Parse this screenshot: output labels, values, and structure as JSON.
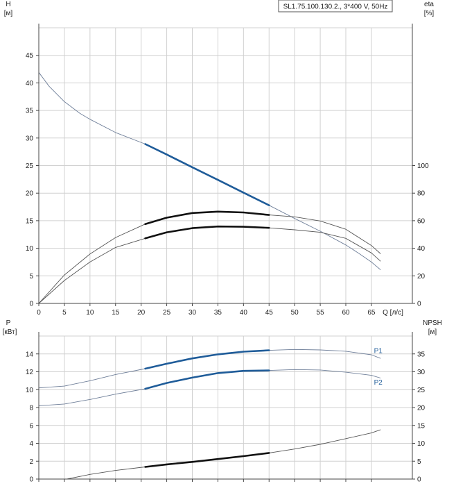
{
  "colors": {
    "grid": "#d0d0d0",
    "axis": "#444444",
    "blue": "#1f5c99",
    "thin": "#6f7f99",
    "black": "#111111"
  },
  "header": {
    "title": "SL1.75.100.130.2., 3*400 V, 50Hz"
  },
  "chart_data": [
    {
      "type": "line",
      "xlabel": "Q [л/с]",
      "ylabel_left": [
        "H",
        "[м]"
      ],
      "ylabel_right": [
        "eta",
        "[%]"
      ],
      "xlim": [
        0,
        73
      ],
      "ylim_left": [
        0,
        50
      ],
      "ylim_right": [
        0,
        200
      ],
      "x_ticks": [
        0,
        5,
        10,
        15,
        20,
        25,
        30,
        35,
        40,
        45,
        50,
        55,
        60,
        65
      ],
      "x_tick_labels": [
        "0",
        "5",
        "10",
        "15",
        "20",
        "25",
        "30",
        "35",
        "40",
        "45",
        "50",
        "55",
        "60",
        "65"
      ],
      "y_ticks_left": [
        0,
        5,
        10,
        15,
        20,
        25,
        30,
        35,
        40,
        45
      ],
      "y_ticks_right": [
        0,
        20,
        40,
        60,
        80,
        100
      ],
      "duty_range": [
        20.8,
        45
      ],
      "grid": true,
      "series": [
        {
          "axis": "left",
          "color": "blue",
          "x": [
            0,
            2,
            5,
            8,
            10,
            15,
            20.8,
            25,
            30,
            35,
            40,
            45,
            50,
            55,
            60,
            62.5,
            65,
            66.8
          ],
          "y": [
            41.9,
            39.4,
            36.6,
            34.5,
            33.4,
            31,
            28.9,
            27,
            24.7,
            22.4,
            20.1,
            17.8,
            15.4,
            13.1,
            10.6,
            9.1,
            7.5,
            6.1
          ]
        },
        {
          "axis": "right",
          "color": "black",
          "x": [
            0,
            5,
            10,
            15,
            20.8,
            25,
            30,
            35,
            40,
            45,
            50,
            55,
            60,
            65,
            66.8
          ],
          "y": [
            0,
            20.6,
            35.8,
            47.8,
            57.6,
            62.2,
            65.6,
            66.6,
            66,
            64.2,
            62.8,
            59.8,
            53.8,
            42,
            36
          ]
        },
        {
          "axis": "right",
          "color": "black",
          "x": [
            0,
            5,
            10,
            15,
            20.8,
            25,
            30,
            35,
            40,
            45,
            50,
            55,
            60,
            65,
            66.8
          ],
          "y": [
            0,
            16.6,
            30,
            40.6,
            47.2,
            51.6,
            54.6,
            55.8,
            55.6,
            54.8,
            53.4,
            51.6,
            47.2,
            36.6,
            30.6
          ]
        }
      ]
    },
    {
      "type": "line",
      "ylabel_left": [
        "P",
        "[кВт]"
      ],
      "ylabel_right": [
        "NPSH",
        "[м]"
      ],
      "xlim": [
        0,
        73
      ],
      "ylim_left": [
        0,
        16
      ],
      "ylim_right": [
        0,
        40
      ],
      "y_ticks_left": [
        0,
        2,
        4,
        6,
        8,
        10,
        12,
        14
      ],
      "y_ticks_right": [
        0,
        5,
        10,
        15,
        20,
        25,
        30,
        35
      ],
      "duty_range": [
        20.8,
        45
      ],
      "grid": true,
      "series": [
        {
          "name": "P1",
          "axis": "left",
          "color": "blue",
          "label_at": [
            65.5,
            14.35
          ],
          "x": [
            0,
            5,
            10,
            15,
            20.8,
            25,
            30,
            35,
            40,
            45,
            50,
            55,
            60,
            65,
            66.8
          ],
          "y": [
            10.2,
            10.4,
            11,
            11.7,
            12.35,
            12.9,
            13.5,
            13.95,
            14.25,
            14.4,
            14.5,
            14.45,
            14.3,
            13.9,
            13.5
          ]
        },
        {
          "name": "P2",
          "axis": "left",
          "color": "blue",
          "label_at": [
            65.5,
            10.85
          ],
          "x": [
            0,
            5,
            10,
            15,
            20.8,
            25,
            30,
            35,
            40,
            45,
            50,
            55,
            60,
            65,
            66.8
          ],
          "y": [
            8.2,
            8.4,
            8.9,
            9.5,
            10.1,
            10.75,
            11.35,
            11.85,
            12.1,
            12.15,
            12.25,
            12.2,
            11.95,
            11.6,
            11.3
          ]
        },
        {
          "axis": "right",
          "color": "black",
          "x": [
            0,
            5.5,
            10,
            15,
            20.8,
            25,
            30,
            35,
            40,
            45,
            50,
            55,
            60,
            65,
            66.8
          ],
          "y": [
            0,
            0,
            1.3,
            2.4,
            3.4,
            4.1,
            4.8,
            5.6,
            6.4,
            7.3,
            8.4,
            9.7,
            11.3,
            12.9,
            13.8
          ]
        }
      ]
    }
  ]
}
